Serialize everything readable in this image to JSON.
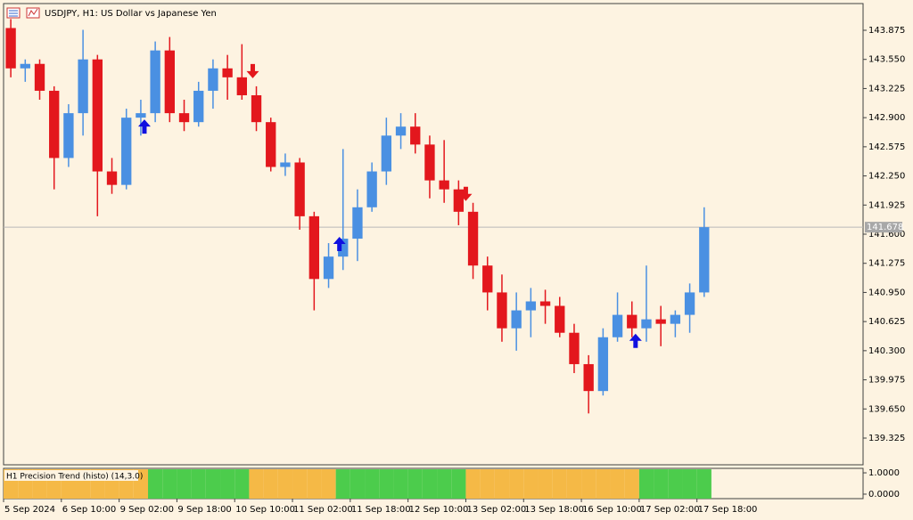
{
  "chart_data": {
    "type": "candlestick",
    "title": "USDJPY, H1: US Dollar vs Japanese Yen",
    "x": [
      0,
      4,
      8,
      12,
      16,
      20,
      24,
      28,
      32,
      36,
      40,
      44,
      48,
      52,
      56,
      60,
      64,
      68,
      72,
      76,
      80,
      84,
      88,
      92,
      96,
      100,
      104,
      108,
      112,
      116,
      120,
      124,
      128,
      132,
      136,
      140,
      144,
      148,
      152,
      156,
      160,
      164,
      168,
      172,
      176,
      180,
      184,
      188,
      192
    ],
    "open": [
      143.9,
      143.45,
      143.5,
      143.2,
      142.45,
      142.95,
      143.55,
      142.3,
      142.15,
      142.9,
      142.95,
      143.65,
      142.95,
      142.85,
      143.2,
      143.45,
      143.35,
      143.15,
      142.85,
      142.35,
      142.4,
      141.8,
      141.1,
      141.35,
      141.55,
      141.9,
      142.3,
      142.7,
      142.8,
      142.6,
      142.2,
      142.1,
      141.85,
      141.25,
      140.95,
      140.55,
      140.75,
      140.85,
      140.8,
      140.5,
      140.15,
      139.85,
      140.45,
      140.7,
      140.55,
      140.65,
      140.6,
      140.7,
      140.95
    ],
    "high": [
      144.0,
      143.55,
      143.55,
      143.25,
      143.05,
      143.88,
      143.6,
      142.45,
      143.0,
      143.1,
      143.75,
      143.8,
      143.1,
      143.3,
      143.55,
      143.6,
      143.72,
      143.25,
      142.9,
      142.5,
      142.45,
      141.85,
      141.5,
      142.55,
      142.1,
      142.4,
      142.9,
      142.95,
      142.95,
      142.7,
      142.65,
      142.2,
      141.95,
      141.35,
      141.15,
      140.95,
      141.0,
      140.98,
      140.9,
      140.6,
      140.25,
      140.55,
      140.95,
      140.85,
      141.25,
      140.8,
      140.75,
      141.05,
      141.9
    ],
    "low": [
      143.35,
      143.3,
      143.1,
      142.1,
      142.35,
      142.7,
      141.8,
      142.05,
      142.1,
      142.7,
      142.85,
      142.85,
      142.75,
      142.8,
      143.0,
      143.1,
      143.1,
      142.75,
      142.3,
      142.25,
      141.65,
      140.75,
      141.0,
      141.2,
      141.3,
      141.85,
      142.15,
      142.55,
      142.5,
      142.0,
      141.95,
      141.7,
      141.1,
      140.75,
      140.4,
      140.3,
      140.45,
      140.6,
      140.45,
      140.05,
      139.6,
      139.8,
      140.4,
      140.45,
      140.4,
      140.35,
      140.45,
      140.5,
      140.9
    ],
    "close": [
      143.45,
      143.5,
      143.2,
      142.45,
      142.95,
      143.55,
      142.3,
      142.15,
      142.9,
      142.95,
      143.65,
      142.95,
      142.85,
      143.2,
      143.45,
      143.35,
      143.15,
      142.85,
      142.35,
      142.4,
      141.8,
      141.1,
      141.35,
      141.55,
      141.9,
      142.3,
      142.7,
      142.8,
      142.6,
      142.2,
      142.1,
      141.85,
      141.25,
      140.95,
      140.55,
      140.75,
      140.85,
      140.8,
      140.5,
      140.15,
      139.85,
      140.45,
      140.7,
      140.55,
      140.65,
      140.6,
      140.7,
      140.95,
      141.678
    ],
    "up_color": "#4a90e2",
    "down_color": "#e3171d",
    "xlim": [
      0,
      238
    ],
    "xticks": [
      {
        "value": 0,
        "label": "5 Sep 2024"
      },
      {
        "value": 16,
        "label": "6 Sep 10:00"
      },
      {
        "value": 32,
        "label": "9 Sep 02:00"
      },
      {
        "value": 48,
        "label": "9 Sep 18:00"
      },
      {
        "value": 64,
        "label": "10 Sep 10:00"
      },
      {
        "value": 80,
        "label": "11 Sep 02:00"
      },
      {
        "value": 96,
        "label": "11 Sep 18:00"
      },
      {
        "value": 112,
        "label": "12 Sep 10:00"
      },
      {
        "value": 128,
        "label": "13 Sep 02:00"
      },
      {
        "value": 144,
        "label": "13 Sep 18:00"
      },
      {
        "value": 160,
        "label": "16 Sep 10:00"
      },
      {
        "value": 176,
        "label": "17 Sep 02:00"
      },
      {
        "value": 192,
        "label": "17 Sep 18:00"
      }
    ],
    "ylim": [
      139.027,
      144.173
    ],
    "yticks": [
      143.875,
      {
        "value": 143.55,
        "label": "143.550"
      },
      143.225,
      {
        "value": 142.9,
        "label": "142.900"
      },
      142.575,
      {
        "value": 142.25,
        "label": "142.250"
      },
      141.925,
      {
        "value": 141.6,
        "label": "141.600"
      },
      141.275,
      {
        "value": 140.95,
        "label": "140.950"
      },
      140.625,
      {
        "value": 140.3,
        "label": "140.300"
      },
      139.975,
      {
        "value": 139.65,
        "label": "139.650"
      },
      139.325
    ],
    "last_price": 141.678,
    "signals": [
      {
        "x": 39,
        "price": 142.88,
        "type": "buy",
        "color": "#1010e0"
      },
      {
        "x": 69,
        "price": 143.34,
        "type": "sell",
        "color": "#e3171d"
      },
      {
        "x": 93,
        "price": 141.57,
        "type": "buy",
        "color": "#1010e0"
      },
      {
        "x": 128,
        "price": 141.97,
        "type": "sell",
        "color": "#e3171d"
      },
      {
        "x": 175,
        "price": 140.49,
        "type": "buy",
        "color": "#1010e0"
      }
    ],
    "indicator": {
      "title": "H1 Precision Trend (histo) (14,3.0)",
      "values": [
        1,
        1,
        1,
        1,
        1,
        1,
        1,
        1,
        1,
        1,
        1,
        1,
        1,
        1,
        1,
        1,
        1,
        1,
        1,
        1,
        1,
        1,
        1,
        1,
        1,
        1,
        1,
        1,
        1,
        1,
        1,
        1,
        1,
        1,
        1,
        1,
        1,
        1,
        1,
        1,
        1,
        1,
        1,
        1,
        1,
        1,
        1,
        1,
        1
      ],
      "colors": [
        "#f5b946",
        "#f5b946",
        "#f5b946",
        "#f5b946",
        "#f5b946",
        "#f5b946",
        "#f5b946",
        "#f5b946",
        "#f5b946",
        "#f5b946",
        "#4ccc4c",
        "#4ccc4c",
        "#4ccc4c",
        "#4ccc4c",
        "#4ccc4c",
        "#4ccc4c",
        "#4ccc4c",
        "#f5b946",
        "#f5b946",
        "#f5b946",
        "#f5b946",
        "#f5b946",
        "#f5b946",
        "#4ccc4c",
        "#4ccc4c",
        "#4ccc4c",
        "#4ccc4c",
        "#4ccc4c",
        "#4ccc4c",
        "#4ccc4c",
        "#4ccc4c",
        "#4ccc4c",
        "#f5b946",
        "#f5b946",
        "#f5b946",
        "#f5b946",
        "#f5b946",
        "#f5b946",
        "#f5b946",
        "#f5b946",
        "#f5b946",
        "#f5b946",
        "#f5b946",
        "#f5b946",
        "#4ccc4c",
        "#4ccc4c",
        "#4ccc4c",
        "#4ccc4c",
        "#4ccc4c"
      ],
      "ylim": [
        -0.21,
        1.21
      ],
      "yticks": [
        {
          "value": 1,
          "label": "1.0000"
        },
        {
          "value": 0,
          "label": "0.0000"
        }
      ]
    }
  }
}
